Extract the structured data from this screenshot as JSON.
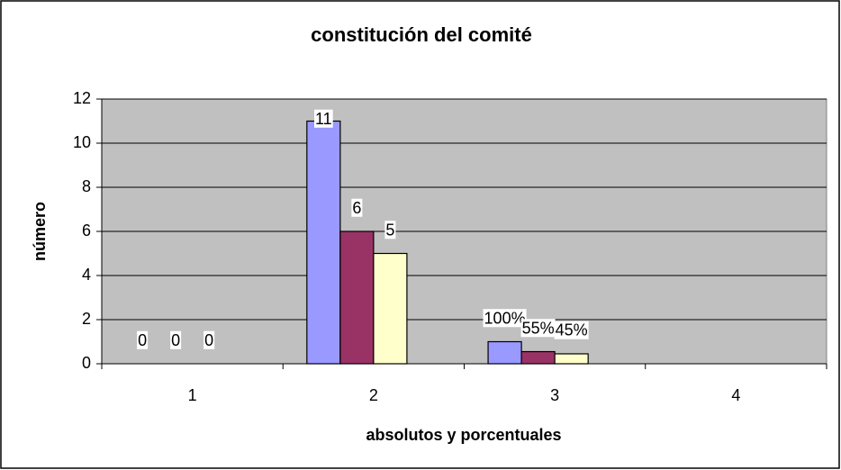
{
  "chart_data": {
    "type": "bar",
    "title": "constitución del comité",
    "xlabel": "absolutos y porcentuales",
    "ylabel": "número",
    "categories": [
      "1",
      "2",
      "3",
      "4"
    ],
    "series": [
      {
        "color": "#9999ff",
        "values": [
          0,
          11,
          1,
          null
        ],
        "value_labels": [
          "0",
          "11",
          "100%",
          null
        ]
      },
      {
        "color": "#993366",
        "values": [
          0,
          6,
          0.55,
          null
        ],
        "value_labels": [
          "0",
          "6",
          "55%",
          null
        ]
      },
      {
        "color": "#ffffcc",
        "values": [
          0,
          5,
          0.45,
          null
        ],
        "value_labels": [
          "0",
          "5",
          "45%",
          null
        ]
      }
    ],
    "ylim": [
      0,
      12
    ],
    "yticks": [
      0,
      2,
      4,
      6,
      8,
      10,
      12
    ],
    "grid": true
  }
}
